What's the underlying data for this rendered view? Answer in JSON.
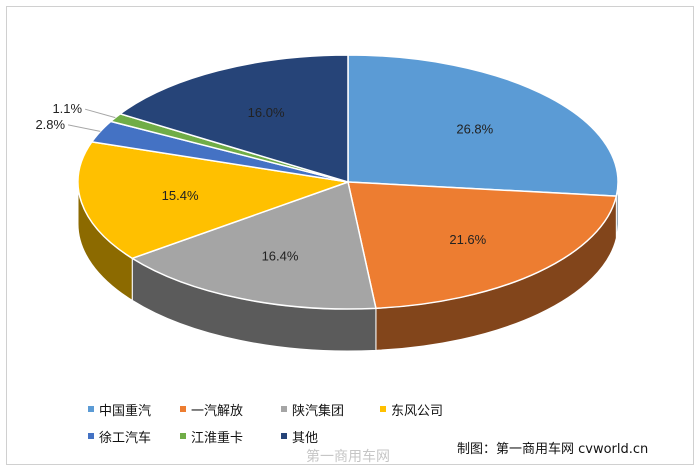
{
  "chart_data": {
    "type": "pie",
    "title": "",
    "categories": [
      "中国重汽",
      "一汽解放",
      "陕汽集团",
      "东风公司",
      "徐工汽车",
      "江淮重卡",
      "其他"
    ],
    "values": [
      26.8,
      21.6,
      16.4,
      15.4,
      2.8,
      1.1,
      16.0
    ],
    "value_labels": [
      "26.8%",
      "21.6%",
      "16.4%",
      "15.4%",
      "2.8%",
      "1.1%",
      "16.0%"
    ],
    "colors": [
      "#5b9bd5",
      "#ed7d31",
      "#a5a5a5",
      "#ffc000",
      "#4472c4",
      "#70ad47",
      "#264478"
    ],
    "legend_position": "bottom",
    "three_d": true
  },
  "footer": {
    "credit": "制图：第一商用车网  cvworld.cn"
  },
  "watermark": {
    "text": "第一商用车网"
  }
}
